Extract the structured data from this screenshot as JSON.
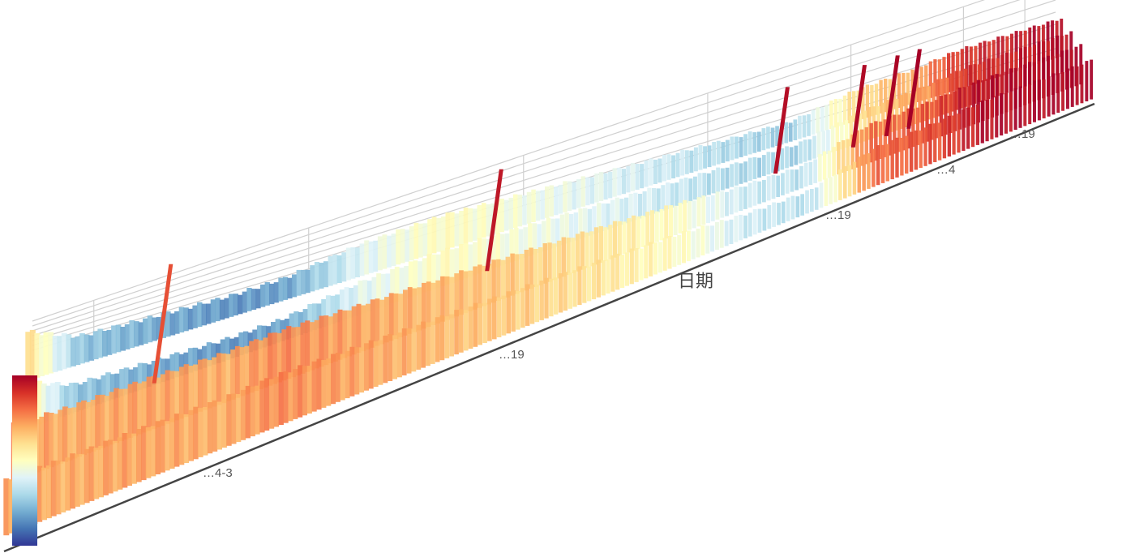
{
  "chart_data": {
    "type": "bar3d",
    "x_axis_title": "日期",
    "x_tick_labels": [
      "…4-3",
      "…19",
      "…19",
      "…4",
      "…19"
    ],
    "colormap": [
      "#313695",
      "#4575b4",
      "#74add1",
      "#abd9e9",
      "#e0f3f8",
      "#ffffbf",
      "#fee090",
      "#fdae61",
      "#f46d43",
      "#d73027",
      "#a50026"
    ],
    "grid": true,
    "legend": "colorbar-left-bottom",
    "series_profile": [
      {
        "t": 0.0,
        "back": 0.6,
        "front": 0.74
      },
      {
        "t": 0.05,
        "back": 0.25,
        "front": 0.7
      },
      {
        "t": 0.12,
        "back": 0.2,
        "front": 0.72
      },
      {
        "t": 0.2,
        "back": 0.15,
        "front": 0.7
      },
      {
        "t": 0.25,
        "back": 0.18,
        "front": 0.76
      },
      {
        "t": 0.32,
        "back": 0.4,
        "front": 0.72
      },
      {
        "t": 0.4,
        "back": 0.5,
        "front": 0.68
      },
      {
        "t": 0.48,
        "back": 0.45,
        "front": 0.64
      },
      {
        "t": 0.55,
        "back": 0.4,
        "front": 0.58
      },
      {
        "t": 0.62,
        "back": 0.35,
        "front": 0.5
      },
      {
        "t": 0.68,
        "back": 0.3,
        "front": 0.36
      },
      {
        "t": 0.74,
        "back": 0.28,
        "front": 0.32
      },
      {
        "t": 0.8,
        "back": 0.6,
        "front": 0.8
      },
      {
        "t": 0.86,
        "back": 0.72,
        "front": 0.86
      },
      {
        "t": 0.9,
        "back": 0.9,
        "front": 0.97
      },
      {
        "t": 1.0,
        "back": 0.98,
        "front": 1.0
      }
    ],
    "spikes": [
      {
        "t": 0.18,
        "value": 0.85
      },
      {
        "t": 0.48,
        "value": 0.95
      },
      {
        "t": 0.74,
        "value": 0.97
      },
      {
        "t": 0.81,
        "value": 0.98
      },
      {
        "t": 0.84,
        "value": 0.99
      },
      {
        "t": 0.86,
        "value": 1.0
      }
    ]
  }
}
